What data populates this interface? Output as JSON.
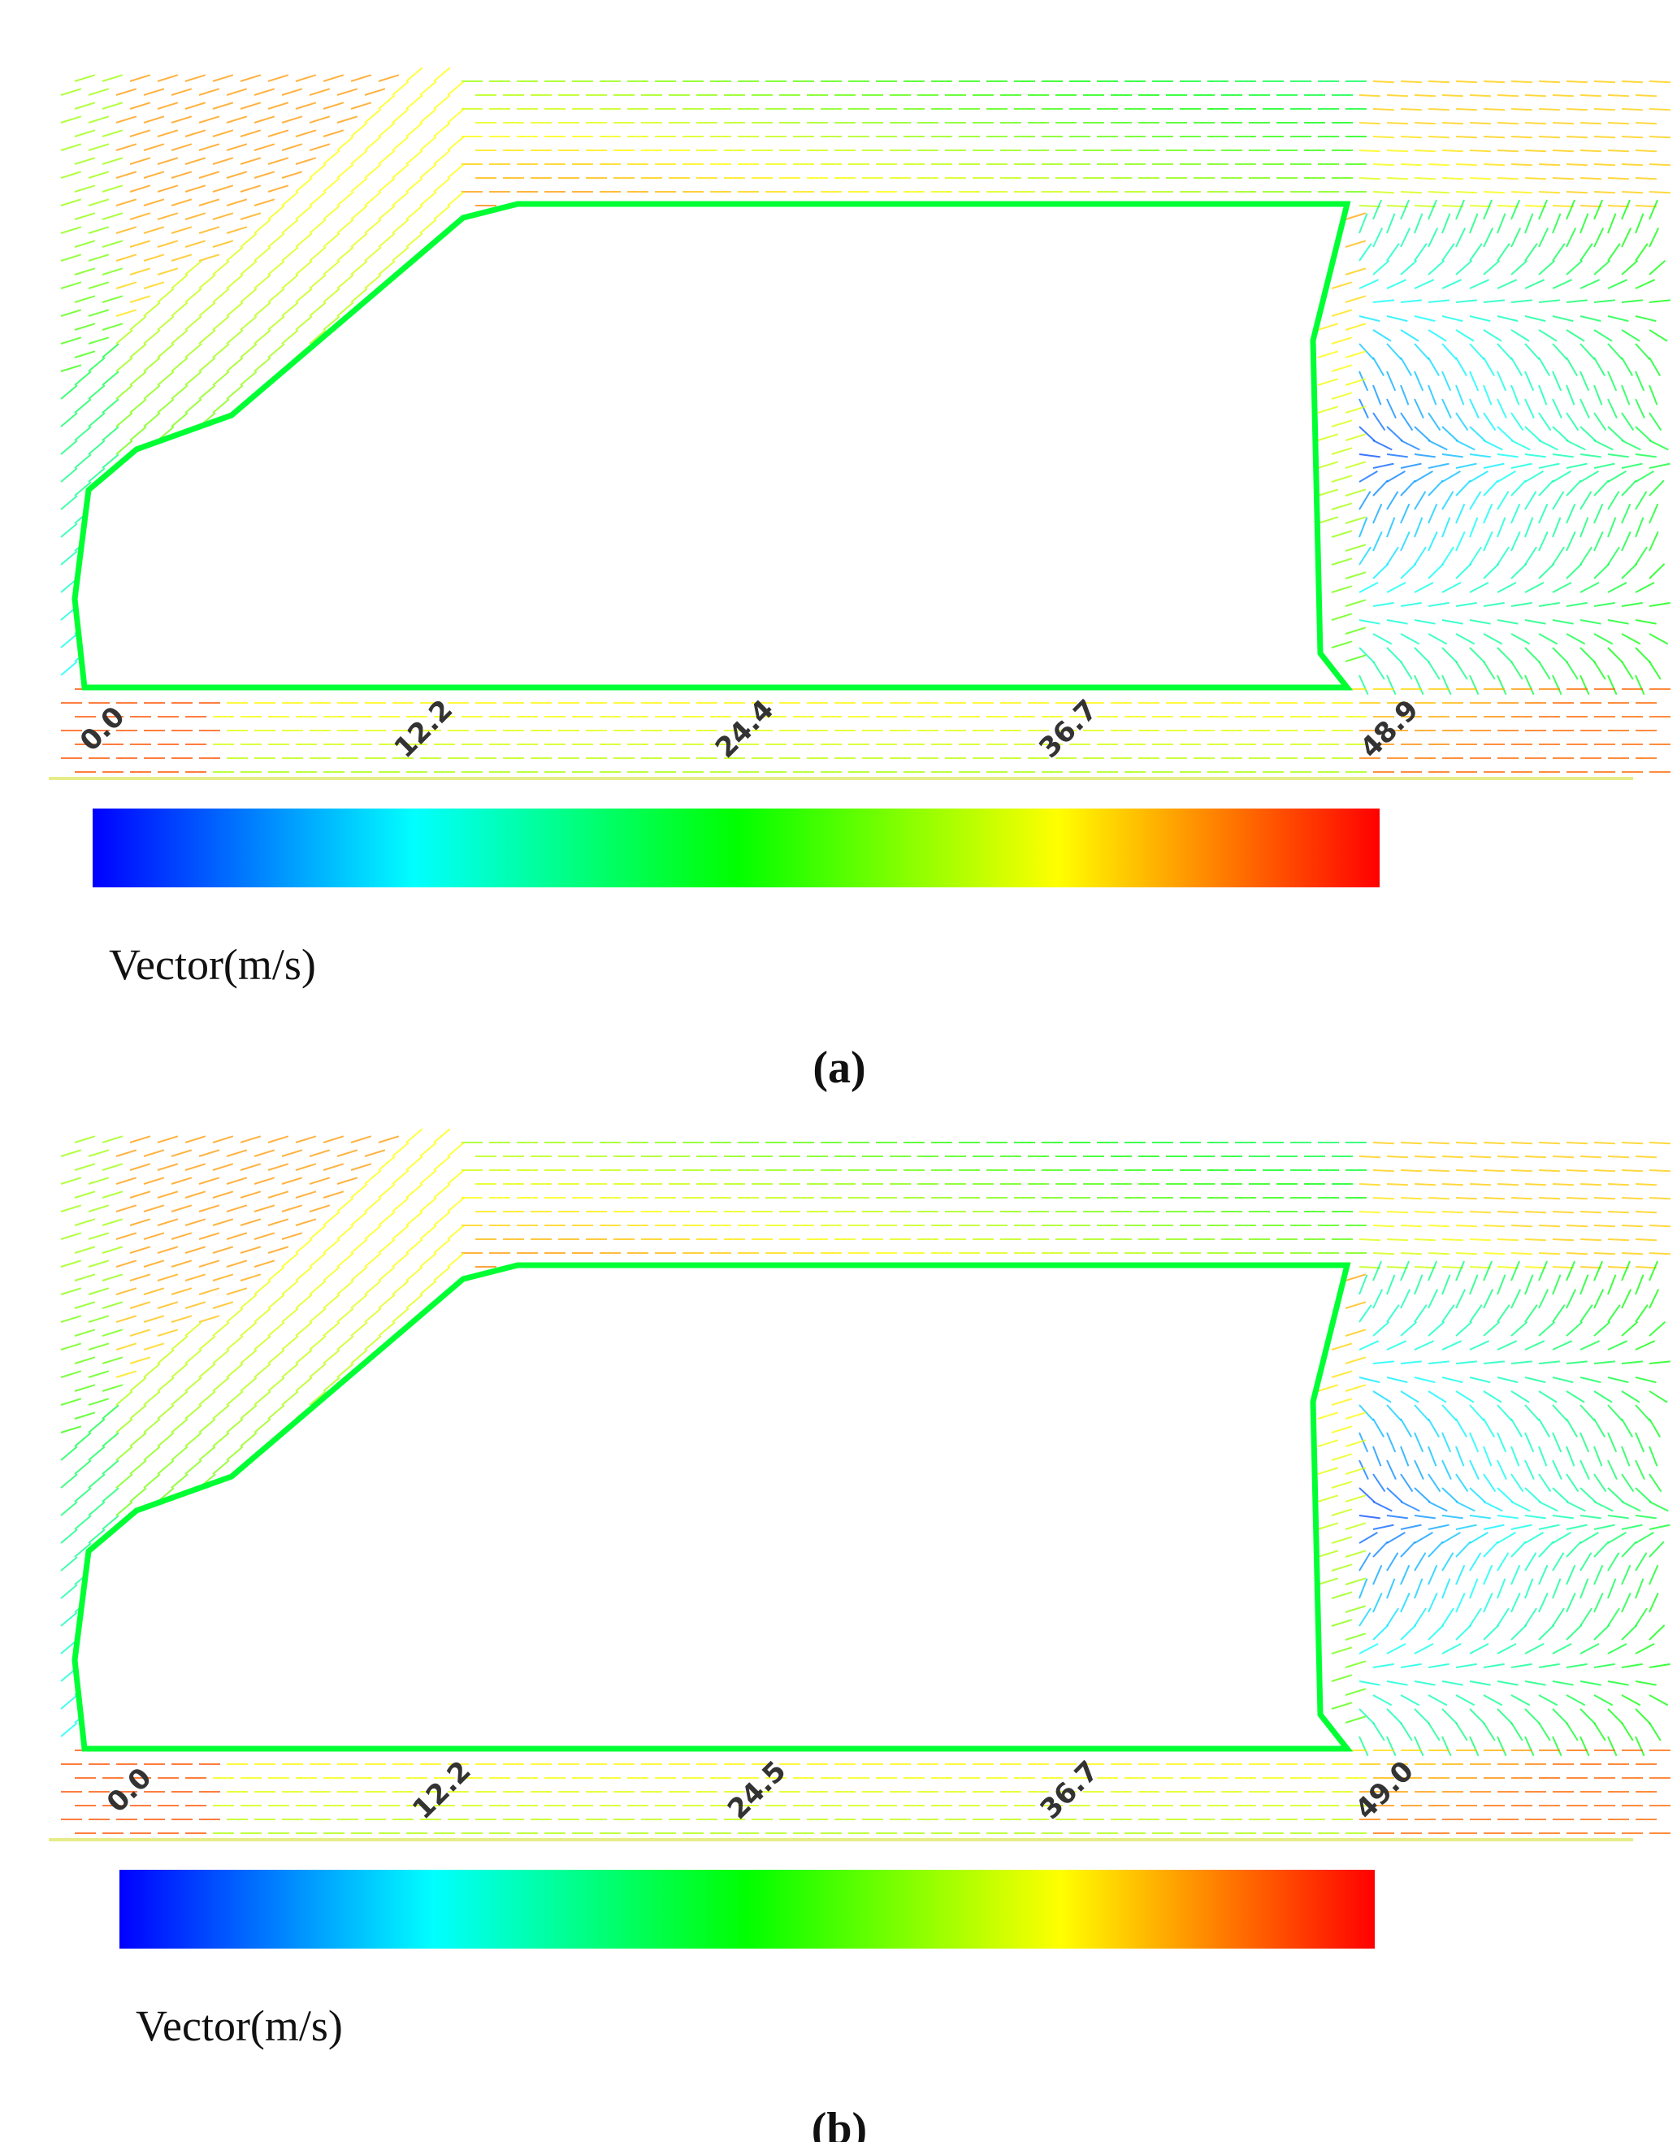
{
  "chart_data": [
    {
      "type": "vector-colorbar",
      "caption": "(a)",
      "label": "Vector(m/s)",
      "colors": [
        "#0000ff",
        "#00ffff",
        "#00ff00",
        "#ffff00",
        "#ff0000"
      ],
      "xlim": [
        0,
        48.9
      ],
      "xticks": [
        {
          "value": 0,
          "label": "0.0"
        },
        12.2,
        24.4,
        36.7,
        48.9
      ]
    },
    {
      "type": "vector-colorbar",
      "caption": "(b)",
      "label": "Vector(m/s)",
      "colors": [
        "#0000ff",
        "#00ffff",
        "#00ff00",
        "#ffff00",
        "#ff0000"
      ],
      "xlim": [
        0,
        49
      ],
      "xticks": [
        {
          "value": 0,
          "label": "0.0"
        },
        12.2,
        24.5,
        36.7,
        {
          "value": 49,
          "label": "49.0"
        }
      ]
    }
  ]
}
